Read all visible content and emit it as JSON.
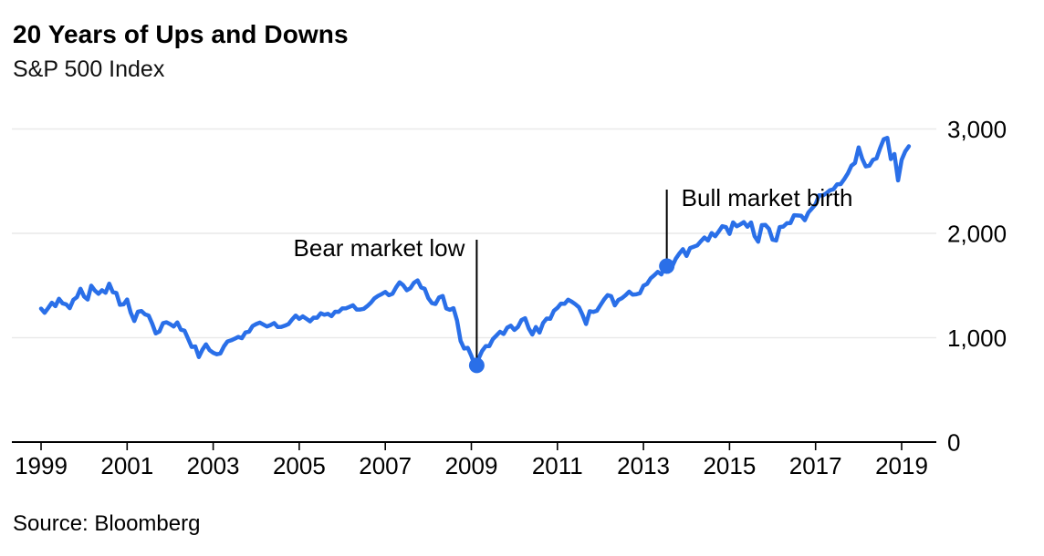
{
  "header": {
    "title": "20 Years of Ups and Downs",
    "subtitle": "S&P 500 Index"
  },
  "footer": {
    "source": "Source: Bloomberg"
  },
  "colors": {
    "series_blue": "#2A6FE8",
    "gridline_gray": "#e9e9e9",
    "axis_black": "#000000",
    "background": "#ffffff"
  },
  "chart_data": {
    "type": "line",
    "title": "20 Years of Ups and Downs",
    "subtitle": "S&P 500 Index",
    "source": "Source: Bloomberg",
    "xlabel": "",
    "ylabel": "",
    "grid": "horizontal",
    "legend": "none",
    "xlim": [
      1999.0,
      2019.25
    ],
    "ylim": [
      0,
      3000
    ],
    "x_ticks": [
      {
        "value": 1999,
        "label": "1999"
      },
      {
        "value": 2001,
        "label": "2001"
      },
      {
        "value": 2003,
        "label": "2003"
      },
      {
        "value": 2005,
        "label": "2005"
      },
      {
        "value": 2007,
        "label": "2007"
      },
      {
        "value": 2009,
        "label": "2009"
      },
      {
        "value": 2011,
        "label": "2011"
      },
      {
        "value": 2013,
        "label": "2013"
      },
      {
        "value": 2015,
        "label": "2015"
      },
      {
        "value": 2017,
        "label": "2017"
      },
      {
        "value": 2019,
        "label": "2019"
      }
    ],
    "y_ticks": [
      {
        "value": 0,
        "label": "0"
      },
      {
        "value": 1000,
        "label": "1,000"
      },
      {
        "value": 2000,
        "label": "2,000"
      },
      {
        "value": 3000,
        "label": "3,000"
      }
    ],
    "series": [
      {
        "name": "S&P 500 Index",
        "color": "#2A6FE8",
        "frequency": "monthly",
        "start_year": 1999,
        "start_month": 1,
        "values": [
          1279,
          1238,
          1286,
          1335,
          1302,
          1373,
          1329,
          1320,
          1283,
          1363,
          1389,
          1469,
          1394,
          1366,
          1499,
          1452,
          1421,
          1455,
          1431,
          1518,
          1437,
          1429,
          1315,
          1320,
          1366,
          1240,
          1160,
          1249,
          1256,
          1224,
          1211,
          1134,
          1041,
          1060,
          1139,
          1148,
          1130,
          1107,
          1147,
          1077,
          1067,
          990,
          912,
          916,
          815,
          886,
          936,
          880,
          856,
          841,
          849,
          917,
          964,
          975,
          990,
          1008,
          996,
          1051,
          1058,
          1112,
          1131,
          1145,
          1126,
          1107,
          1121,
          1141,
          1102,
          1104,
          1115,
          1130,
          1174,
          1212,
          1181,
          1204,
          1181,
          1157,
          1192,
          1191,
          1234,
          1220,
          1229,
          1207,
          1249,
          1248,
          1280,
          1281,
          1295,
          1311,
          1270,
          1270,
          1277,
          1304,
          1336,
          1378,
          1401,
          1418,
          1438,
          1407,
          1421,
          1482,
          1531,
          1503,
          1455,
          1474,
          1527,
          1549,
          1481,
          1468,
          1379,
          1331,
          1323,
          1386,
          1400,
          1280,
          1267,
          1283,
          1165,
          969,
          896,
          903,
          826,
          735,
          798,
          873,
          919,
          919,
          987,
          1021,
          1057,
          1036,
          1096,
          1115,
          1074,
          1104,
          1169,
          1187,
          1089,
          1031,
          1102,
          1049,
          1141,
          1183,
          1181,
          1258,
          1286,
          1327,
          1326,
          1364,
          1345,
          1321,
          1292,
          1219,
          1131,
          1253,
          1247,
          1258,
          1312,
          1366,
          1408,
          1398,
          1310,
          1362,
          1379,
          1407,
          1441,
          1412,
          1416,
          1426,
          1498,
          1515,
          1569,
          1598,
          1631,
          1606,
          1686,
          1633,
          1682,
          1757,
          1806,
          1848,
          1783,
          1859,
          1872,
          1884,
          1924,
          1960,
          1931,
          2003,
          1972,
          2018,
          2068,
          2059,
          1995,
          2105,
          2068,
          2086,
          2107,
          2063,
          2104,
          1972,
          1920,
          2079,
          2080,
          2044,
          1940,
          1932,
          2060,
          2065,
          2097,
          2099,
          2174,
          2171,
          2168,
          2126,
          2199,
          2239,
          2279,
          2364,
          2363,
          2384,
          2412,
          2423,
          2470,
          2472,
          2519,
          2575,
          2648,
          2674,
          2824,
          2714,
          2641,
          2648,
          2705,
          2718,
          2816,
          2902,
          2914,
          2712,
          2760,
          2507,
          2704,
          2784,
          2834
        ]
      }
    ],
    "annotations": [
      {
        "id": "bear-market-low",
        "label": "Bear market low",
        "year": 2009.125,
        "value": 735,
        "text_side": "left"
      },
      {
        "id": "bull-market-birth",
        "label": "Bull market birth",
        "year": 2013.542,
        "value": 1686,
        "text_side": "right"
      }
    ]
  }
}
